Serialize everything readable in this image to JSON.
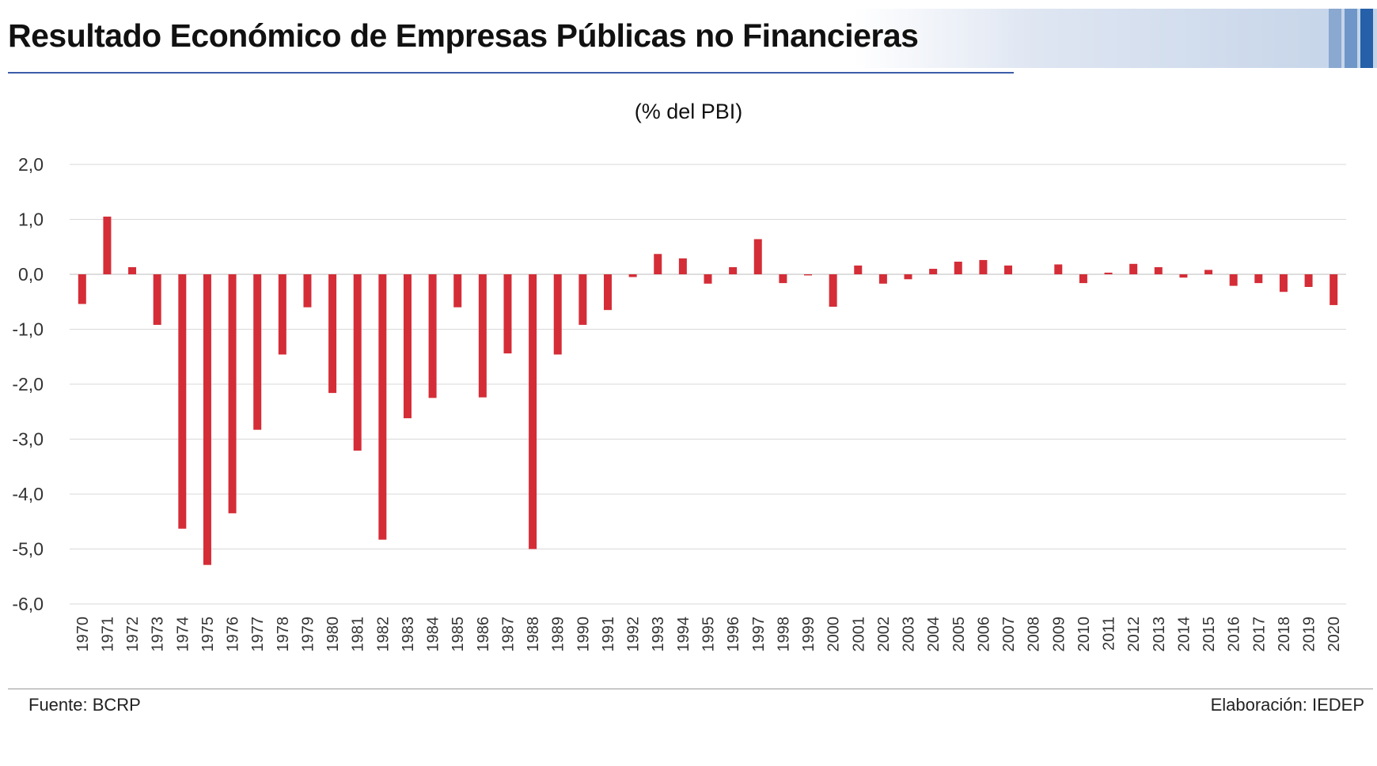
{
  "header": {
    "title": "Resultado Económico de Empresas Públicas no Financieras",
    "subtitle": "(% del PBI)"
  },
  "footer": {
    "source": "Fuente:  BCRP",
    "credit": "Elaboración: IEDEP"
  },
  "colors": {
    "bar": "#d42d37",
    "accent": "#2560a8"
  },
  "chart_data": {
    "type": "bar",
    "title": "Resultado Económico de Empresas Públicas no Financieras",
    "subtitle": "(% del PBI)",
    "ylim": [
      -6,
      2
    ],
    "yticks": [
      2,
      1,
      0,
      -1,
      -2,
      -3,
      -4,
      -5,
      -6
    ],
    "ytick_labels": [
      "2,0",
      "1,0",
      "0,0",
      "-1,0",
      "-2,0",
      "-3,0",
      "-4,0",
      "-5,0",
      "-6,0"
    ],
    "grid": true,
    "categories": [
      "1970",
      "1971",
      "1972",
      "1973",
      "1974",
      "1975",
      "1976",
      "1977",
      "1978",
      "1979",
      "1980",
      "1981",
      "1982",
      "1983",
      "1984",
      "1985",
      "1986",
      "1987",
      "1988",
      "1989",
      "1990",
      "1991",
      "1992",
      "1993",
      "1994",
      "1995",
      "1996",
      "1997",
      "1998",
      "1999",
      "2000",
      "2001",
      "2002",
      "2003",
      "2004",
      "2005",
      "2006",
      "2007",
      "2008",
      "2009",
      "2010",
      "2011",
      "2012",
      "2013",
      "2014",
      "2015",
      "2016",
      "2017",
      "2018",
      "2019",
      "2020"
    ],
    "values": [
      -0.54,
      1.05,
      0.13,
      -0.92,
      -4.63,
      -5.29,
      -4.35,
      -2.83,
      -1.46,
      -0.6,
      -2.16,
      -3.21,
      -4.83,
      -2.62,
      -2.25,
      -0.6,
      -2.24,
      -1.44,
      -5.0,
      -1.46,
      -0.92,
      -0.65,
      -0.05,
      0.37,
      0.29,
      -0.17,
      0.13,
      0.64,
      -0.16,
      -0.02,
      -0.59,
      0.16,
      -0.17,
      -0.09,
      0.1,
      0.23,
      0.26,
      0.16,
      0.0,
      0.18,
      -0.16,
      0.03,
      0.19,
      0.13,
      -0.06,
      0.08,
      -0.21,
      -0.16,
      -0.32,
      -0.23,
      -0.56
    ]
  }
}
